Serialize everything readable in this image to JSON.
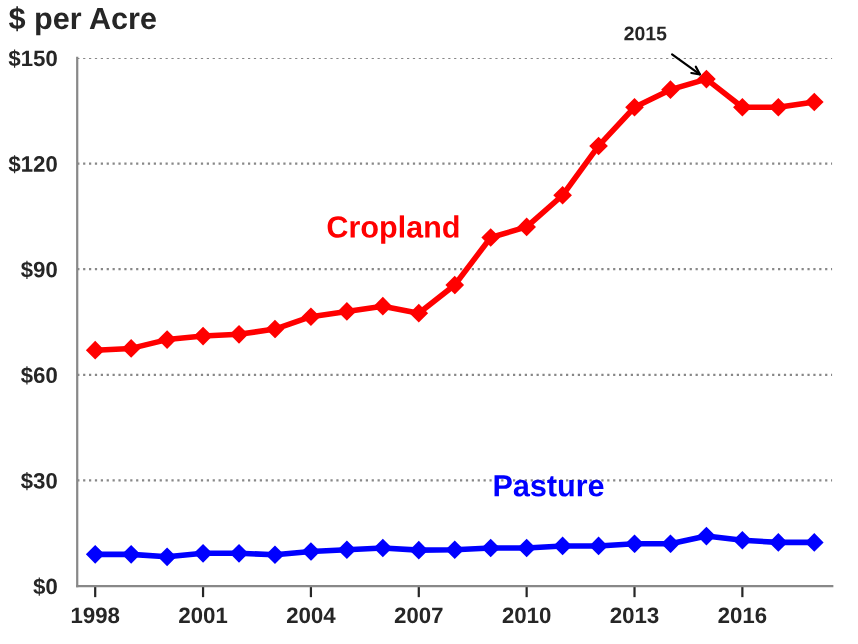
{
  "chart_data": {
    "type": "line",
    "title": "$ per Acre",
    "x": [
      1998,
      1999,
      2000,
      2001,
      2002,
      2003,
      2004,
      2005,
      2006,
      2007,
      2008,
      2009,
      2010,
      2011,
      2012,
      2013,
      2014,
      2015,
      2016,
      2017,
      2018
    ],
    "series": [
      {
        "name": "Cropland",
        "color": "#ff0000",
        "values": [
          67,
          67.5,
          70,
          71,
          71.5,
          73,
          76.5,
          78,
          79.5,
          77.5,
          85.5,
          99,
          102,
          111,
          125,
          136,
          141,
          144,
          136,
          136,
          137.5
        ]
      },
      {
        "name": "Pasture",
        "color": "#0000ff",
        "values": [
          9,
          9,
          8.3,
          9.3,
          9.3,
          8.9,
          9.8,
          10.3,
          10.8,
          10.2,
          10.3,
          10.8,
          10.8,
          11.4,
          11.4,
          12,
          12,
          14.2,
          13,
          12.4,
          12.4
        ]
      }
    ],
    "xlim": [
      1997.5,
      2018.5
    ],
    "xticks": [
      1998,
      2001,
      2004,
      2007,
      2010,
      2013,
      2016
    ],
    "ylim": [
      0,
      150
    ],
    "yticks": [
      {
        "value": 0,
        "label": "$0"
      },
      {
        "value": 30,
        "label": "$30"
      },
      {
        "value": 60,
        "label": "$60"
      },
      {
        "value": 90,
        "label": "$90"
      },
      {
        "value": 120,
        "label": "$120"
      },
      {
        "value": 150,
        "label": "$150"
      }
    ],
    "grid": "y",
    "marker": "diamond",
    "line_style": "solid",
    "legend": false,
    "annotations": [
      {
        "text": "2015",
        "x": 2015,
        "y": 144
      }
    ]
  }
}
